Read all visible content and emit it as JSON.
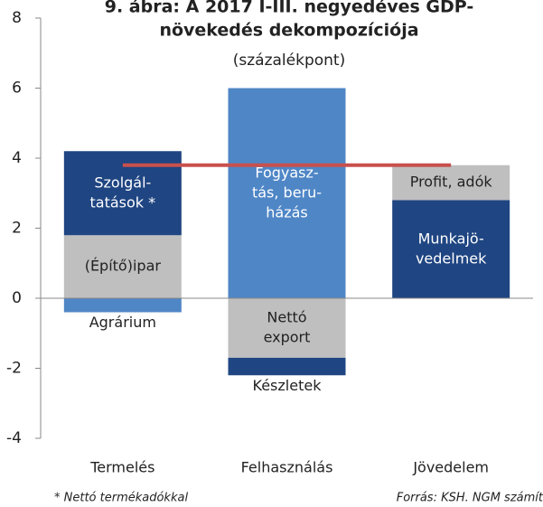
{
  "chart_data": {
    "type": "stacked_bar",
    "title": [
      "9. ábra: A 2017 I-III. negyedéves GDP-",
      "növekedés dekompozíciója"
    ],
    "subtitle": "(százalékpont)",
    "categories": [
      "Termelés",
      "Felhasználás",
      "Jövedelem"
    ],
    "stacks": [
      [
        {
          "label": [
            "Agrárium"
          ],
          "value": -0.4,
          "color": "#4f86c6"
        },
        {
          "label": [
            "(Építő)ipar"
          ],
          "value": 1.8,
          "color": "#bfbfbf"
        },
        {
          "label": [
            "Szolgál-",
            "tatások *"
          ],
          "value": 2.4,
          "color": "#1f4582"
        }
      ],
      [
        {
          "label": [
            "Fogyasz-",
            "tás, beru-",
            "házás"
          ],
          "value": 6.0,
          "color": "#4f86c6"
        },
        {
          "label": [
            "Nettó",
            "export"
          ],
          "value": -1.7,
          "color": "#bfbfbf"
        },
        {
          "label": [
            "Készletek"
          ],
          "value": -0.5,
          "color": "#1f4582"
        }
      ],
      [
        {
          "label": [
            "Munkajö-",
            "vedelmek"
          ],
          "value": 2.8,
          "color": "#1f4582"
        },
        {
          "label": [
            "Profit, adók"
          ],
          "value": 1.0,
          "color": "#bfbfbf"
        }
      ]
    ],
    "reference_line": {
      "value": 3.8,
      "color": "#c9504d"
    },
    "ylim": [
      -4,
      8
    ],
    "yticks": [
      -4,
      -2,
      0,
      2,
      4,
      6,
      8
    ],
    "footnote": "* Nettó termékadókkal",
    "source": "Forrás: KSH. NGM számít"
  }
}
